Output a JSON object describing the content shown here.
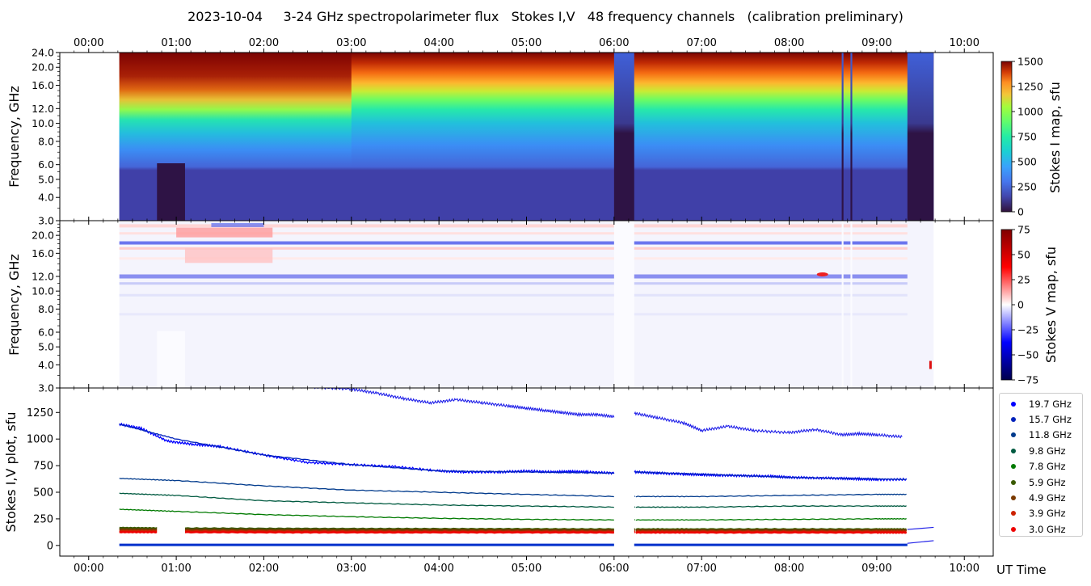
{
  "title": "2023-10-04     3-24 GHz spectropolarimeter flux   Stokes I,V   48 frequency channels   (calibration preliminary)",
  "time_ticks": [
    "00:00",
    "01:00",
    "02:00",
    "03:00",
    "04:00",
    "05:00",
    "06:00",
    "07:00",
    "08:00",
    "09:00",
    "10:00"
  ],
  "xlabel": "UT Time",
  "colors": {
    "v_line": "#0000ff",
    "series_dark": "#003a8c"
  },
  "chart_data": [
    {
      "type": "heatmap",
      "panel": "Stokes I map",
      "ylabel": "Frequency, GHz",
      "yticks": [
        "3.0",
        "4.0",
        "5.0",
        "6.0",
        "8.0",
        "10.0",
        "12.0",
        "16.0",
        "20.0",
        "24.0"
      ],
      "ylim": [
        3.0,
        24.0
      ],
      "xlim_hours": [
        -0.33,
        10.33
      ],
      "colorbar_label": "Stokes I map, sfu",
      "colorbar_ticks": [
        "0",
        "250",
        "500",
        "750",
        "1000",
        "1250",
        "1500"
      ],
      "colorbar_range": [
        0,
        1500
      ],
      "colormap": "turbo",
      "data_start_hour": 0.35,
      "data_end_hour": 9.65,
      "gaps": [
        {
          "start": 0.78,
          "end": 1.1,
          "fmax": 6.1
        },
        {
          "start": 6.0,
          "end": 6.23,
          "fmax": 24.0
        },
        {
          "start": 8.6,
          "end": 8.62,
          "fmax": 24.0
        },
        {
          "start": 8.7,
          "end": 8.72,
          "fmax": 24.0
        },
        {
          "start": 9.35,
          "end": 9.65,
          "fmax": 24.0
        }
      ]
    },
    {
      "type": "heatmap",
      "panel": "Stokes V map",
      "ylabel": "Frequency, GHz",
      "yticks": [
        "3.0",
        "4.0",
        "5.0",
        "6.0",
        "8.0",
        "10.0",
        "12.0",
        "16.0",
        "20.0"
      ],
      "ylim": [
        3.0,
        24.0
      ],
      "colorbar_label": "Stokes V map, sfu",
      "colorbar_ticks": [
        "75",
        "50",
        "25",
        "0",
        "−25",
        "−50",
        "−75"
      ],
      "colorbar_range": [
        -75,
        75
      ],
      "colormap": "seismic"
    },
    {
      "type": "scatter",
      "panel": "Stokes I,V plot",
      "ylabel": "Stokes I,V plot, sfu",
      "yticks": [
        "0",
        "250",
        "500",
        "750",
        "1000",
        "1250"
      ],
      "ylim": [
        -100,
        1480
      ],
      "series": [
        {
          "name": "19.7 GHz",
          "color": "#0000ff",
          "x": [
            0.35,
            0.6,
            0.9,
            1.2,
            1.5,
            2.0,
            2.5,
            3.0,
            3.5,
            4.0,
            4.3,
            4.7,
            5.0,
            5.3,
            5.5,
            5.7,
            6.0,
            6.25,
            6.5,
            6.8,
            7.0,
            7.2,
            7.5,
            7.8,
            8.0,
            8.3,
            8.6,
            8.8,
            9.0,
            9.35
          ],
          "values": [
            1140,
            1100,
            980,
            950,
            930,
            850,
            780,
            760,
            740,
            700,
            690,
            690,
            700,
            690,
            695,
            690,
            680,
            690,
            680,
            670,
            665,
            660,
            655,
            650,
            640,
            635,
            630,
            625,
            620,
            620
          ]
        },
        {
          "name": "15.7 GHz",
          "color": "#0022bb",
          "x": [
            0.35,
            1.0,
            2.0,
            3.0,
            4.0,
            5.0,
            6.0,
            6.25,
            7.0,
            8.0,
            9.0,
            9.35
          ],
          "values": [
            1140,
            1000,
            850,
            760,
            700,
            690,
            680,
            690,
            670,
            640,
            625,
            620
          ]
        },
        {
          "name": "11.8 GHz",
          "color": "#003a8c",
          "x": [
            0.35,
            1.0,
            2.0,
            3.0,
            4.0,
            5.0,
            6.0,
            6.25,
            7.0,
            8.0,
            9.0,
            9.35
          ],
          "values": [
            630,
            610,
            560,
            520,
            500,
            480,
            460,
            460,
            460,
            470,
            480,
            480
          ]
        },
        {
          "name": "9.8 GHz",
          "color": "#005a40",
          "x": [
            0.35,
            1.0,
            2.0,
            3.0,
            4.0,
            5.0,
            6.0,
            6.25,
            7.0,
            8.0,
            9.0,
            9.35
          ],
          "values": [
            490,
            470,
            420,
            400,
            380,
            370,
            360,
            360,
            360,
            370,
            370,
            370
          ]
        },
        {
          "name": "7.8 GHz",
          "color": "#007a00",
          "x": [
            0.35,
            1.0,
            2.0,
            3.0,
            4.0,
            5.0,
            6.0,
            6.25,
            7.0,
            8.0,
            9.0,
            9.35
          ],
          "values": [
            340,
            320,
            290,
            270,
            255,
            245,
            240,
            240,
            240,
            245,
            250,
            250
          ]
        },
        {
          "name": "5.9 GHz",
          "color": "#3a5a00",
          "x": [
            0.35,
            1.0,
            2.0,
            3.0,
            4.0,
            5.0,
            6.0,
            6.25,
            7.0,
            8.0,
            9.0,
            9.35
          ],
          "values": [
            165,
            160,
            158,
            156,
            155,
            154,
            152,
            152,
            152,
            152,
            152,
            152
          ]
        },
        {
          "name": "4.9 GHz",
          "color": "#7a3a00",
          "x": [
            0.35,
            1.0,
            2.0,
            3.0,
            4.0,
            5.0,
            6.0,
            6.25,
            7.0,
            8.0,
            9.0,
            9.35
          ],
          "values": [
            150,
            148,
            146,
            145,
            145,
            144,
            143,
            143,
            143,
            143,
            143,
            143
          ]
        },
        {
          "name": "3.9 GHz",
          "color": "#cc2200",
          "x": [
            0.35,
            1.0,
            2.0,
            3.0,
            4.0,
            5.0,
            6.0,
            6.25,
            7.0,
            8.0,
            9.0,
            9.35
          ],
          "values": [
            135,
            133,
            132,
            131,
            130,
            130,
            130,
            130,
            130,
            130,
            130,
            130
          ]
        },
        {
          "name": "3.0 GHz",
          "color": "#ee0000",
          "x": [
            0.35,
            1.0,
            2.0,
            3.0,
            4.0,
            5.0,
            6.0,
            6.25,
            7.0,
            8.0,
            9.0,
            9.35
          ],
          "values": [
            125,
            124,
            123,
            122,
            122,
            122,
            121,
            121,
            121,
            121,
            121,
            121
          ]
        }
      ],
      "upper_series": {
        "x": [
          2.0,
          2.5,
          3.0,
          3.3,
          3.6,
          3.9,
          4.2,
          4.5,
          4.8,
          5.0,
          5.2,
          5.4,
          5.6,
          5.8,
          6.0,
          6.25,
          6.5,
          6.8,
          7.0,
          7.3,
          7.6,
          8.0,
          8.3,
          8.6,
          8.8,
          9.0,
          9.3
        ],
        "values": [
          1500,
          1490,
          1470,
          1430,
          1380,
          1340,
          1370,
          1340,
          1310,
          1290,
          1270,
          1250,
          1230,
          1230,
          1210,
          1240,
          1200,
          1150,
          1080,
          1120,
          1080,
          1060,
          1090,
          1040,
          1050,
          1040,
          1020
        ]
      },
      "legend_placement": "outside-right"
    }
  ]
}
